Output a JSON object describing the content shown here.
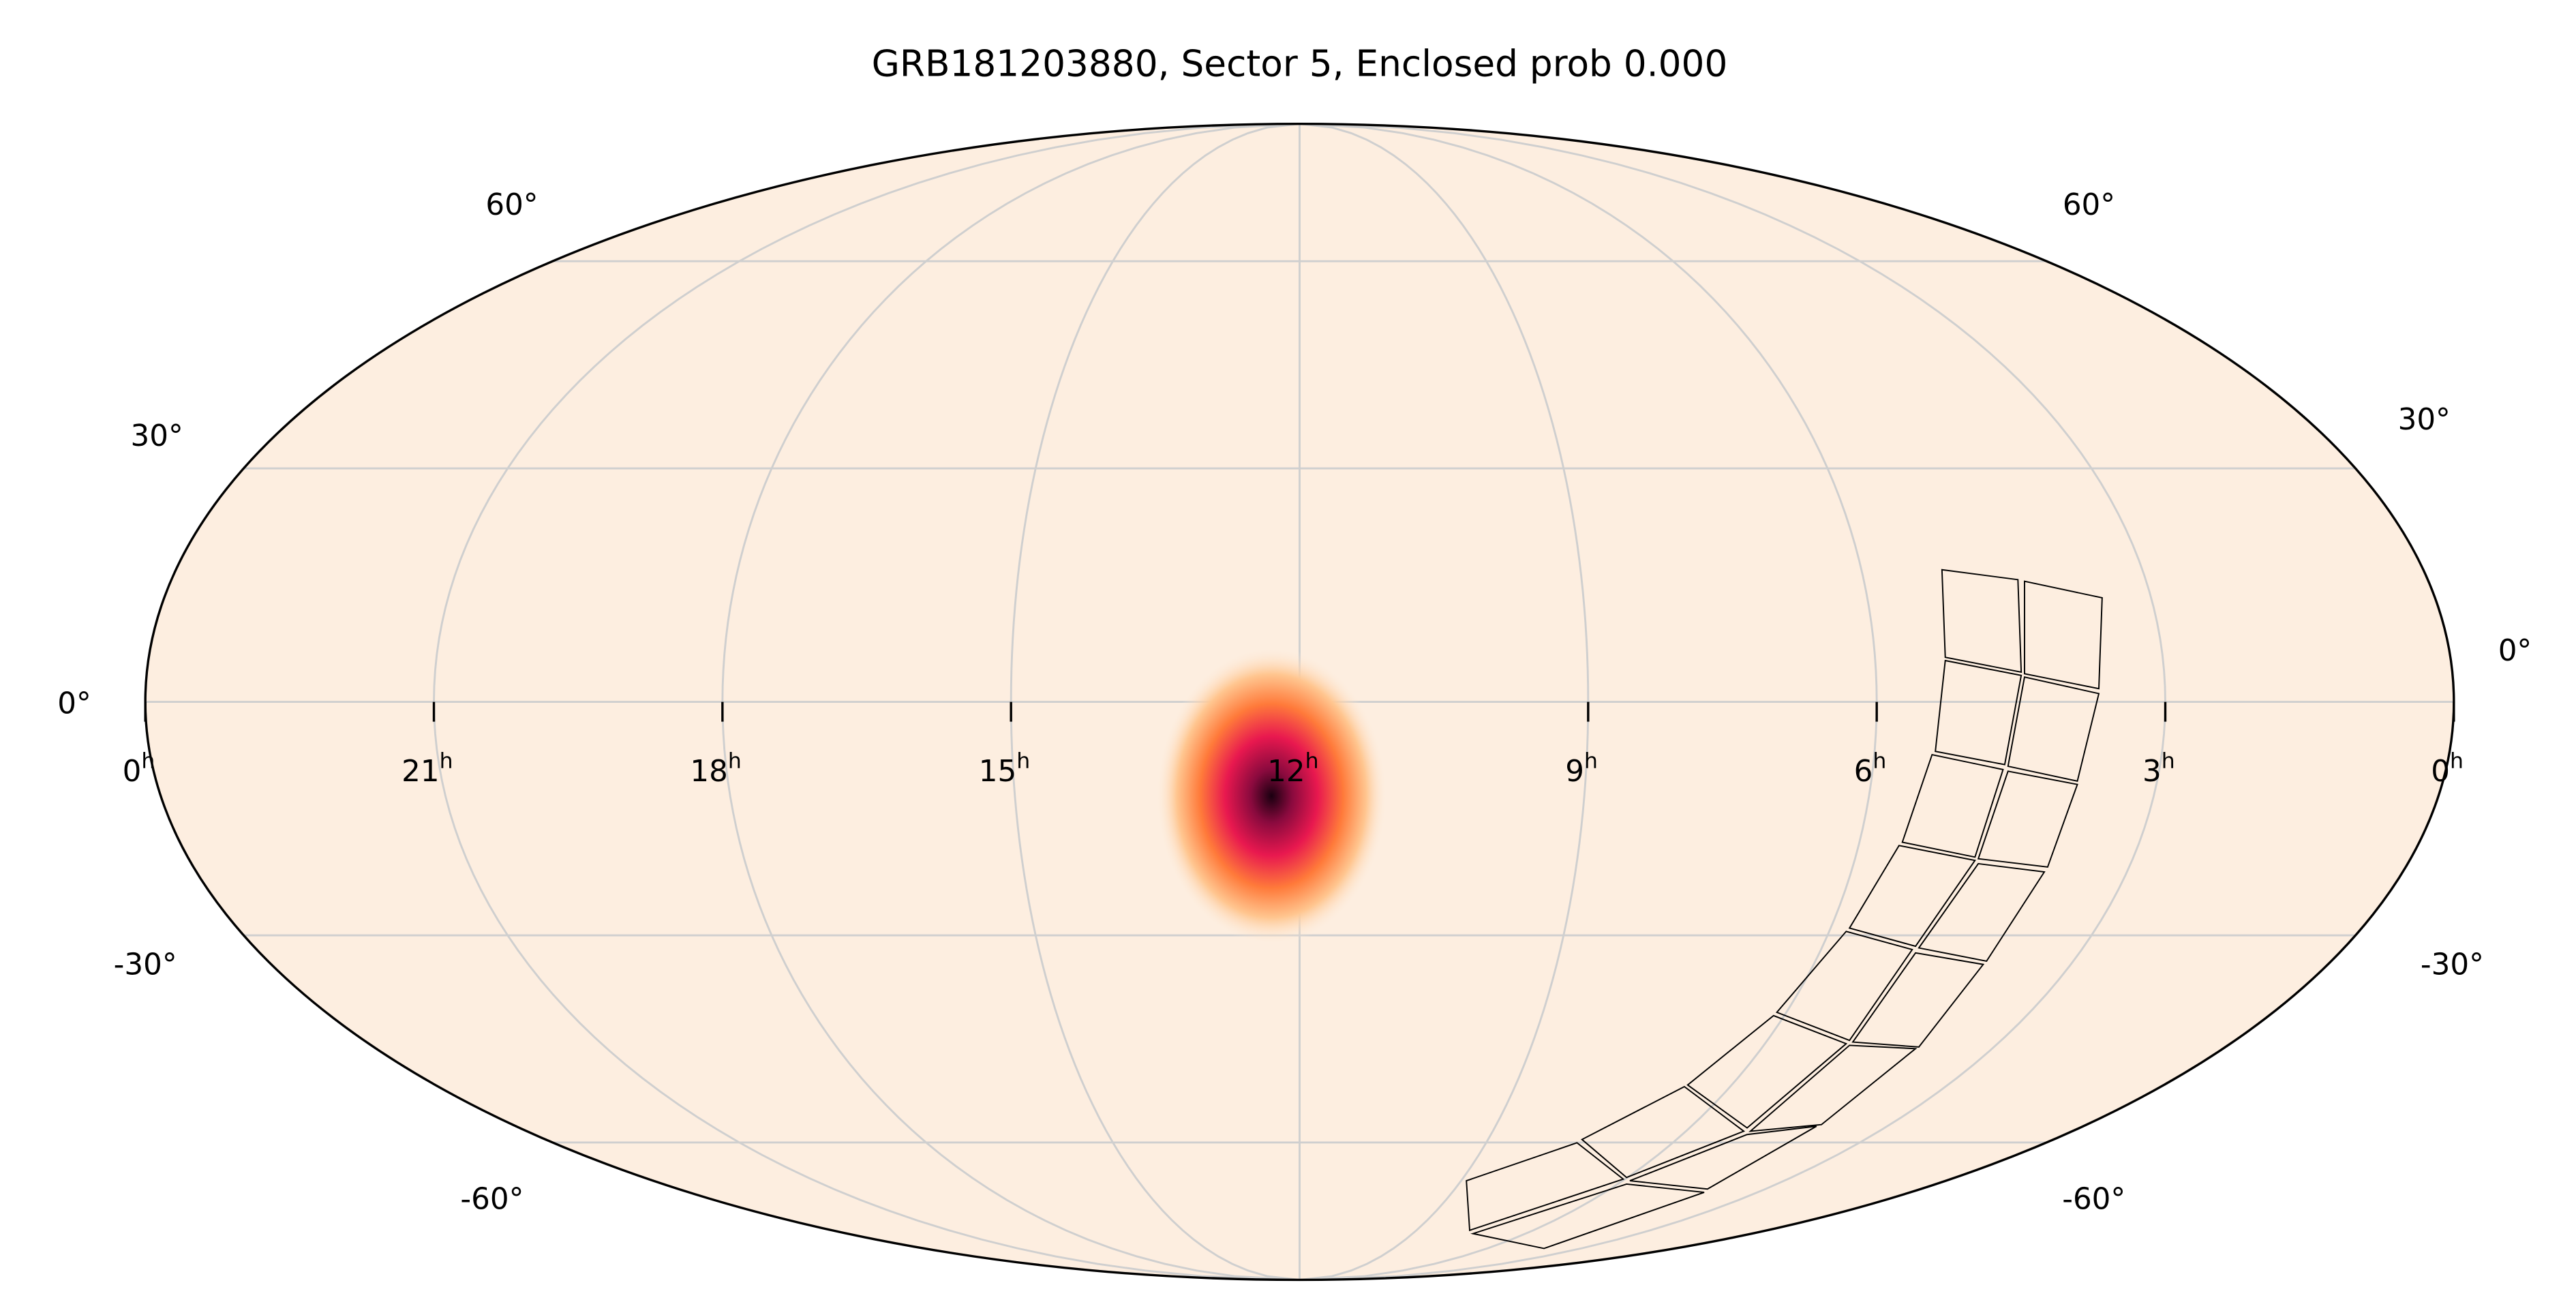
{
  "title": "GRB181203880, Sector 5, Enclosed prob 0.000",
  "ra_ticks": [
    {
      "value": 24,
      "label": "0"
    },
    {
      "value": 21,
      "label": "21"
    },
    {
      "value": 18,
      "label": "18"
    },
    {
      "value": 15,
      "label": "15"
    },
    {
      "value": 12,
      "label": "12"
    },
    {
      "value": 9,
      "label": "9"
    },
    {
      "value": 6,
      "label": "6"
    },
    {
      "value": 3,
      "label": "3"
    },
    {
      "value": 0,
      "label": "0"
    }
  ],
  "ra_unit": "h",
  "dec_ticks": [
    {
      "value": 60,
      "label": "60°"
    },
    {
      "value": 30,
      "label": "30°"
    },
    {
      "value": 0,
      "label": "0°"
    },
    {
      "value": -30,
      "label": "-30°"
    },
    {
      "value": -60,
      "label": "-60°"
    }
  ]
}
